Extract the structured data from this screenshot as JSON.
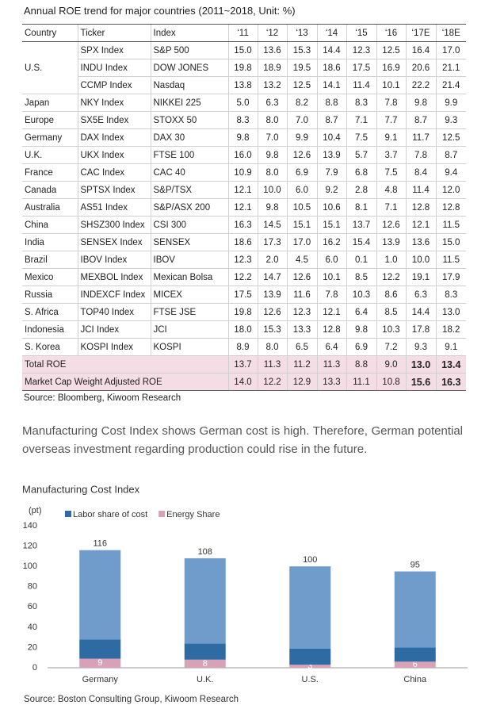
{
  "table": {
    "title": "Annual ROE trend for major countries (2011~2018, Unit: %)",
    "header": [
      "Country",
      "Ticker",
      "Index",
      "‘11",
      "‘12",
      "‘13",
      "‘14",
      "‘15",
      "‘16",
      "‘17E",
      "‘18E"
    ],
    "groups": [
      {
        "country": "U.S.",
        "lines": [
          {
            "ticker": "SPX Index",
            "index": "S&P 500",
            "values": [
              "15.0",
              "13.6",
              "15.3",
              "14.4",
              "12.3",
              "12.5",
              "16.4",
              "17.0"
            ]
          },
          {
            "ticker": "INDU Index",
            "index": "DOW JONES",
            "values": [
              "19.8",
              "18.9",
              "19.5",
              "18.6",
              "17.5",
              "16.9",
              "20.6",
              "21.1"
            ]
          },
          {
            "ticker": "CCMP Index",
            "index": "Nasdaq",
            "values": [
              "13.8",
              "13.2",
              "12.5",
              "14.1",
              "11.4",
              "10.1",
              "22.2",
              "21.4"
            ]
          }
        ]
      },
      {
        "country": "Japan",
        "lines": [
          {
            "ticker": "NKY Index",
            "index": "NIKKEI 225",
            "values": [
              "5.0",
              "6.3",
              "8.2",
              "8.8",
              "8.3",
              "7.8",
              "9.8",
              "9.9"
            ]
          }
        ]
      },
      {
        "country": "Europe",
        "lines": [
          {
            "ticker": "SX5E Index",
            "index": "STOXX 50",
            "values": [
              "8.3",
              "8.0",
              "7.0",
              "8.7",
              "7.1",
              "7.7",
              "8.7",
              "9.3"
            ]
          }
        ]
      },
      {
        "country": "Germany",
        "lines": [
          {
            "ticker": "DAX Index",
            "index": "DAX 30",
            "values": [
              "9.8",
              "7.0",
              "9.9",
              "10.4",
              "7.5",
              "9.1",
              "11.7",
              "12.5"
            ]
          }
        ]
      },
      {
        "country": "U.K.",
        "lines": [
          {
            "ticker": "UKX Index",
            "index": "FTSE 100",
            "values": [
              "16.0",
              "9.8",
              "12.6",
              "13.9",
              "5.7",
              "3.7",
              "7.8",
              "8.7"
            ]
          }
        ]
      },
      {
        "country": "France",
        "lines": [
          {
            "ticker": "CAC Index",
            "index": "CAC 40",
            "values": [
              "10.9",
              "8.0",
              "6.9",
              "7.9",
              "6.8",
              "7.5",
              "8.4",
              "9.4"
            ]
          }
        ]
      },
      {
        "country": "Canada",
        "lines": [
          {
            "ticker": "SPTSX Index",
            "index": "S&P/TSX",
            "values": [
              "12.1",
              "10.0",
              "6.0",
              "9.2",
              "2.8",
              "4.8",
              "11.4",
              "12.0"
            ]
          }
        ]
      },
      {
        "country": "Australia",
        "lines": [
          {
            "ticker": "AS51 Index",
            "index": "S&P/ASX 200",
            "values": [
              "12.1",
              "9.8",
              "10.5",
              "10.6",
              "8.1",
              "7.1",
              "12.8",
              "12.8"
            ]
          }
        ]
      },
      {
        "country": "China",
        "lines": [
          {
            "ticker": "SHSZ300 Index",
            "index": "CSI 300",
            "values": [
              "16.3",
              "14.5",
              "15.1",
              "15.1",
              "13.7",
              "12.6",
              "12.1",
              "11.5"
            ]
          }
        ]
      },
      {
        "country": "India",
        "lines": [
          {
            "ticker": "SENSEX Index",
            "index": "SENSEX",
            "values": [
              "18.6",
              "17.3",
              "17.0",
              "16.2",
              "15.4",
              "13.9",
              "13.6",
              "15.0"
            ]
          }
        ]
      },
      {
        "country": "Brazil",
        "lines": [
          {
            "ticker": "IBOV Index",
            "index": "IBOV",
            "values": [
              "12.3",
              "2.0",
              "4.5",
              "6.0",
              "0.1",
              "1.0",
              "10.0",
              "11.5"
            ]
          }
        ]
      },
      {
        "country": "Mexico",
        "lines": [
          {
            "ticker": "MEXBOL Index",
            "index": "Mexican Bolsa",
            "values": [
              "12.2",
              "14.7",
              "12.6",
              "10.1",
              "8.5",
              "12.2",
              "19.1",
              "17.9"
            ]
          }
        ]
      },
      {
        "country": "Russia",
        "lines": [
          {
            "ticker": "INDEXCF Index",
            "index": "MICEX",
            "values": [
              "17.5",
              "13.9",
              "11.6",
              "7.8",
              "10.3",
              "8.6",
              "6.3",
              "8.3"
            ]
          }
        ]
      },
      {
        "country": "S. Africa",
        "lines": [
          {
            "ticker": "TOP40 Index",
            "index": "FTSE JSE",
            "values": [
              "19.8",
              "12.6",
              "12.3",
              "12.1",
              "6.4",
              "8.5",
              "14.4",
              "13.0"
            ]
          }
        ]
      },
      {
        "country": "Indonesia",
        "lines": [
          {
            "ticker": "JCI Index",
            "index": "JCI",
            "values": [
              "18.0",
              "15.3",
              "13.3",
              "12.8",
              "9.8",
              "10.3",
              "17.8",
              "18.2"
            ]
          }
        ]
      },
      {
        "country": "S. Korea",
        "lines": [
          {
            "ticker": "KOSPI Index",
            "index": "KOSPI",
            "values": [
              "8.9",
              "8.0",
              "6.5",
              "6.4",
              "6.9",
              "7.2",
              "9.3",
              "9.1"
            ]
          }
        ]
      }
    ],
    "summary": [
      {
        "label": "Total ROE",
        "values": [
          "13.7",
          "11.3",
          "11.2",
          "11.3",
          "8.8",
          "9.0",
          "13.0",
          "13.4"
        ]
      },
      {
        "label": "Market Cap Weight Adjusted ROE",
        "values": [
          "14.0",
          "12.2",
          "12.9",
          "13.3",
          "11.1",
          "10.8",
          "15.6",
          "16.3"
        ]
      }
    ],
    "source": "Source: Bloomberg, Kiwoom Research"
  },
  "paragraph": "Manufacturing Cost Index shows German cost is high. Therefore, German potential overseas investment regarding production could rise in the future.",
  "chart_data": {
    "type": "stacked_bar",
    "title": "Manufacturing Cost Index",
    "y_label": "(pt)",
    "categories": [
      "Germany",
      "U.K.",
      "U.S.",
      "China"
    ],
    "series": [
      {
        "name": "Energy Share",
        "color": "#d8a1b6",
        "values": [
          9,
          8,
          3,
          6
        ]
      },
      {
        "name": "Labor share of cost",
        "color": "#2f6ba3",
        "values": [
          19,
          16,
          16,
          14
        ]
      },
      {
        "color": "#6f9ccb",
        "values": [
          88,
          84,
          81,
          75
        ]
      }
    ],
    "total_labels": [
      116,
      108,
      100,
      95
    ],
    "ylim": [
      0,
      140
    ],
    "yticks": [
      0,
      20,
      40,
      60,
      80,
      100,
      120,
      140
    ],
    "source": "Source: Boston Consulting Group, Kiwoom Research"
  }
}
